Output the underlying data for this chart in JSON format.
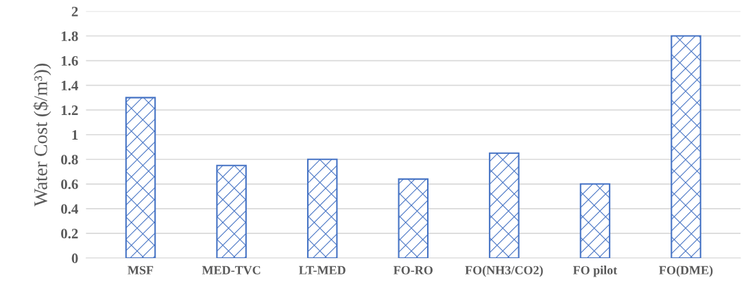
{
  "chart_data": {
    "type": "bar",
    "ylabel": "Water Cost ($/m³))",
    "categories": [
      "MSF",
      "MED-TVC",
      "LT-MED",
      "FO-RO",
      "FO(NH3/CO2)",
      "FO pilot",
      "FO(DME)"
    ],
    "values": [
      1.3,
      0.75,
      0.8,
      0.64,
      0.85,
      0.6,
      1.8
    ],
    "color": "#4472c4",
    "ylim": [
      0,
      2
    ],
    "yticks": [
      0,
      0.2,
      0.4,
      0.6,
      0.8,
      1,
      1.2,
      1.4,
      1.6,
      1.8,
      2
    ],
    "grid": "y"
  }
}
